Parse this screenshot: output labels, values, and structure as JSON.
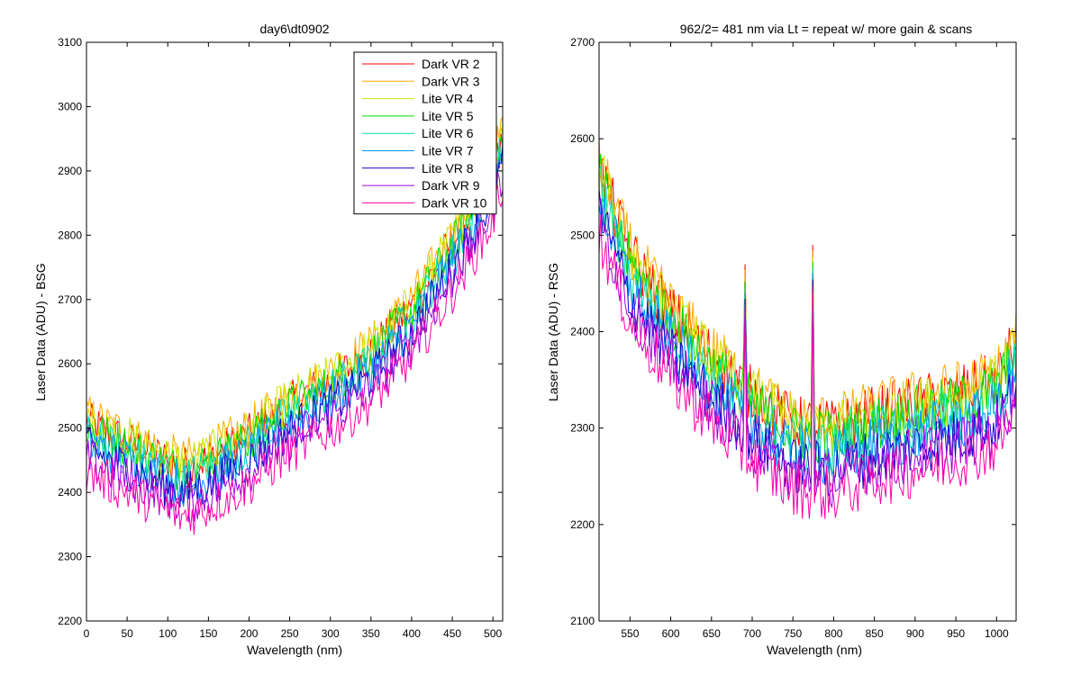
{
  "chart_data": [
    {
      "type": "line",
      "title": "day6\\dt0902",
      "xlabel": "Wavelength (nm)",
      "ylabel": "Laser Data (ADU) - BSG",
      "xlim": [
        0,
        512
      ],
      "ylim": [
        2200,
        3100
      ],
      "xticks": [
        0,
        50,
        100,
        150,
        200,
        250,
        300,
        350,
        400,
        450,
        500
      ],
      "yticks": [
        2200,
        2300,
        2400,
        2500,
        2600,
        2700,
        2800,
        2900,
        3000,
        3100
      ],
      "grid": false,
      "legend_position": "top-right",
      "trend": {
        "x": [
          0,
          50,
          100,
          120,
          150,
          200,
          250,
          300,
          350,
          400,
          450,
          500,
          510
        ],
        "y": [
          2480,
          2450,
          2420,
          2410,
          2425,
          2460,
          2510,
          2545,
          2590,
          2660,
          2760,
          2870,
          2920
        ]
      },
      "series": [
        {
          "name": "Dark VR 2",
          "color": "#ff0000",
          "offset": 28
        },
        {
          "name": "Dark VR 3",
          "color": "#ffaa00",
          "offset": 40
        },
        {
          "name": "Lite VR 4",
          "color": "#c8e600",
          "offset": 35
        },
        {
          "name": "Lite VR 5",
          "color": "#00dc00",
          "offset": 22
        },
        {
          "name": "Lite VR 6",
          "color": "#00dcb4",
          "offset": 12
        },
        {
          "name": "Lite VR 7",
          "color": "#0096ff",
          "offset": 0
        },
        {
          "name": "Lite VR 8",
          "color": "#1400c8",
          "offset": -12
        },
        {
          "name": "Dark VR 9",
          "color": "#a000dc",
          "offset": -28
        },
        {
          "name": "Dark VR 10",
          "color": "#ff00aa",
          "offset": -48
        }
      ]
    },
    {
      "type": "line",
      "title": "962/2= 481 nm via Lt = repeat w/ more gain & scans",
      "xlabel": "Wavelength (nm)",
      "ylabel": "Laser Data (ADU) - RSG",
      "xlim": [
        512,
        1024
      ],
      "ylim": [
        2100,
        2700
      ],
      "xticks": [
        550,
        600,
        650,
        700,
        750,
        800,
        850,
        900,
        950,
        1000
      ],
      "yticks": [
        2100,
        2200,
        2300,
        2400,
        2500,
        2600,
        2700
      ],
      "grid": false,
      "trend": {
        "x": [
          512,
          550,
          600,
          650,
          700,
          750,
          800,
          850,
          900,
          950,
          1000,
          1024
        ],
        "y": [
          2540,
          2450,
          2390,
          2345,
          2305,
          2275,
          2270,
          2285,
          2295,
          2305,
          2320,
          2360
        ]
      },
      "series": [
        {
          "name": "Dark VR 2",
          "color": "#ff0000",
          "offset": 30
        },
        {
          "name": "Dark VR 3",
          "color": "#ffaa00",
          "offset": 36
        },
        {
          "name": "Lite VR 4",
          "color": "#c8e600",
          "offset": 28
        },
        {
          "name": "Lite VR 5",
          "color": "#00dc00",
          "offset": 20
        },
        {
          "name": "Lite VR 6",
          "color": "#00dcb4",
          "offset": 8
        },
        {
          "name": "Lite VR 7",
          "color": "#0096ff",
          "offset": -2
        },
        {
          "name": "Lite VR 8",
          "color": "#1400c8",
          "offset": -14
        },
        {
          "name": "Dark VR 9",
          "color": "#a000dc",
          "offset": -22
        },
        {
          "name": "Dark VR 10",
          "color": "#ff00aa",
          "offset": -38
        }
      ],
      "spikes": [
        {
          "x": 692,
          "y": 2470
        },
        {
          "x": 774,
          "y": 2490
        }
      ]
    }
  ]
}
